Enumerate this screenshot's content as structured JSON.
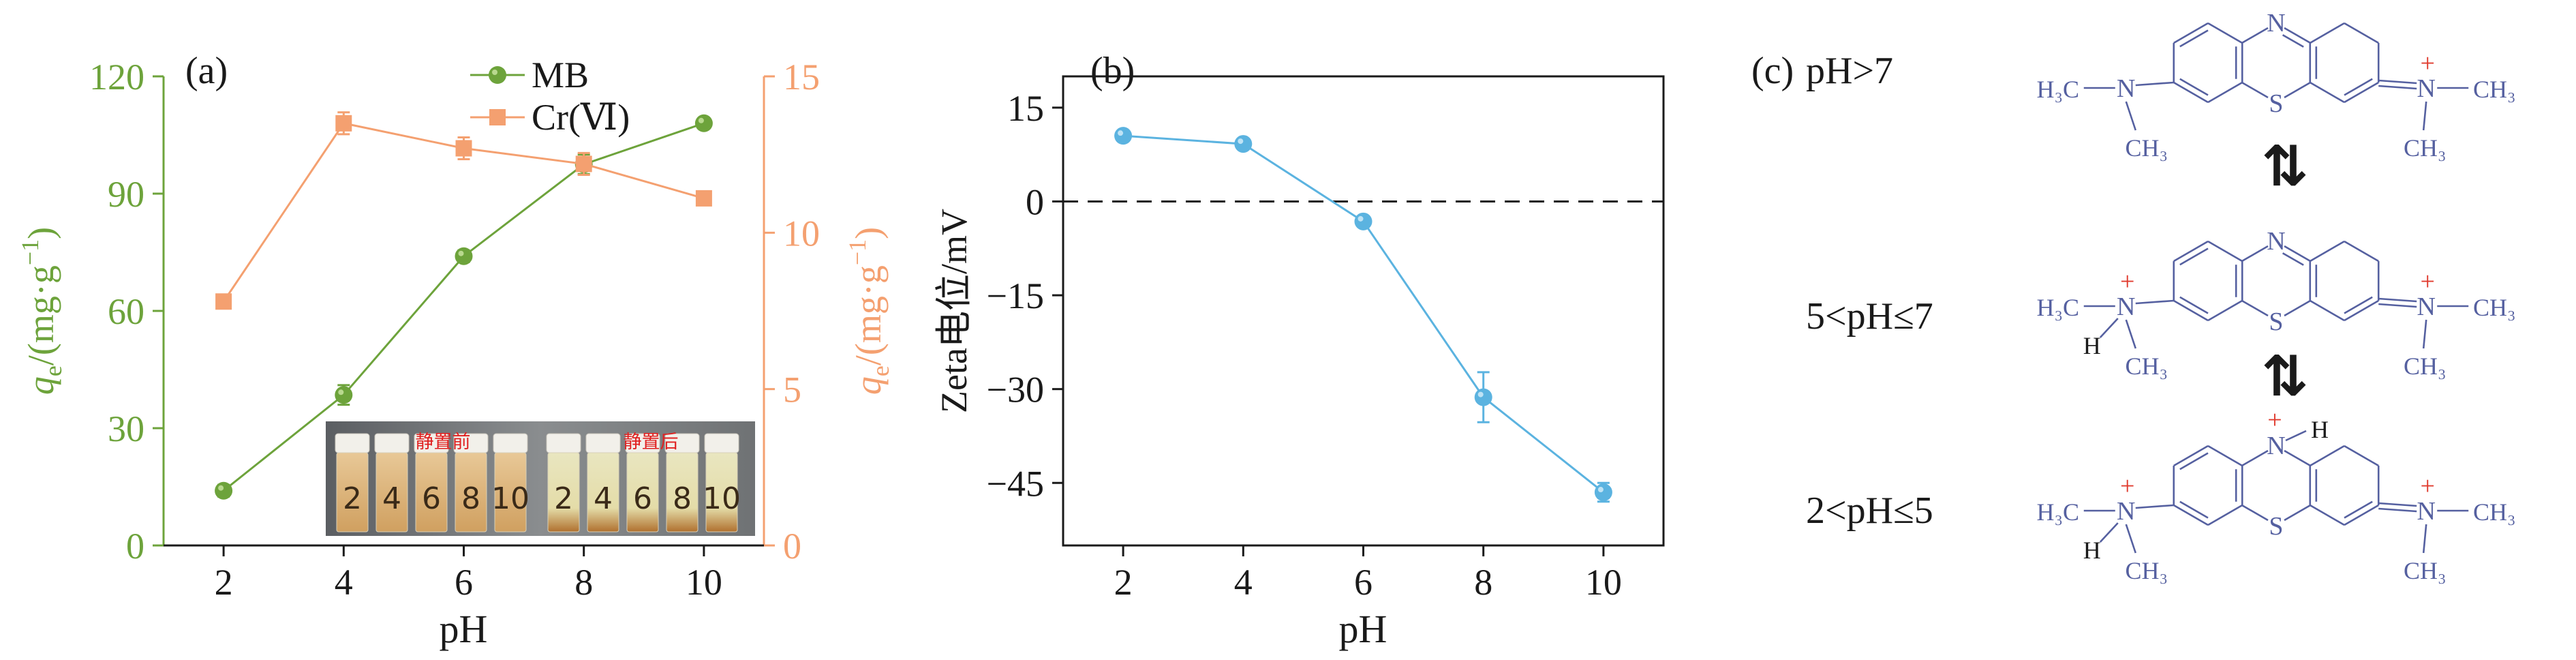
{
  "colors": {
    "mb": "#6da33b",
    "cr": "#f4a070",
    "zeta": "#5bb3e0",
    "axis": "#1a1a1a",
    "structure": "#5560a0",
    "plus": "#e03b2e",
    "photo_label": "#e02020"
  },
  "chart_data": [
    {
      "type": "line",
      "panel": "(a)",
      "x": [
        2,
        4,
        6,
        8,
        10
      ],
      "xlabel": "pH",
      "xticks": [
        "2",
        "4",
        "6",
        "8",
        "10"
      ],
      "xlim": [
        1,
        11
      ],
      "ylabel_left": "q_e/(mg·g^-1)",
      "ylim_left": [
        0,
        120
      ],
      "yticks_left": [
        "0",
        "30",
        "60",
        "90",
        "120"
      ],
      "ylabel_right": "q_e/(mg·g^-1)",
      "ylim_right": [
        0,
        15
      ],
      "yticks_right": [
        "0",
        "5",
        "10",
        "15"
      ],
      "legend_position": "top-center",
      "series": [
        {
          "name": "MB",
          "axis": "left",
          "marker": "circle",
          "values": [
            14,
            38.5,
            74,
            97.5,
            108
          ],
          "errors": [
            1.5,
            2.5,
            1.5,
            2.5,
            1
          ]
        },
        {
          "name": "Cr(Ⅵ)",
          "axis": "right",
          "marker": "square",
          "values": [
            7.8,
            13.5,
            12.7,
            12.2,
            11.1
          ],
          "errors": [
            0.15,
            0.35,
            0.35,
            0.35,
            0.15
          ]
        }
      ],
      "inset_photo": {
        "label_before": "静置前",
        "label_after": "静置后",
        "vial_labels_before": [
          "2",
          "4",
          "6",
          "8",
          "10"
        ],
        "vial_labels_after": [
          "2",
          "4",
          "6",
          "8",
          "10"
        ]
      }
    },
    {
      "type": "line",
      "panel": "(b)",
      "x": [
        2,
        4,
        6,
        8,
        10
      ],
      "xlabel": "pH",
      "xticks": [
        "2",
        "4",
        "6",
        "8",
        "10"
      ],
      "xlim": [
        1,
        11
      ],
      "ylabel": "Zeta电位/mV",
      "ylim": [
        -55,
        20
      ],
      "yticks": [
        "15",
        "0",
        "-15",
        "-30",
        "-45"
      ],
      "reference_line": 0,
      "series": [
        {
          "name": "",
          "marker": "circle",
          "values": [
            10.5,
            9.2,
            -3.2,
            -31.3,
            -46.5
          ],
          "errors": [
            0,
            0,
            0,
            4,
            1.5
          ]
        }
      ]
    }
  ],
  "panel_c": {
    "label": "(c)",
    "conditions": [
      "pH>7",
      "5<pH≤7",
      "2<pH≤5"
    ],
    "equilibrium_symbol": "⇅",
    "atoms": {
      "n": "N",
      "s": "S",
      "h": "H",
      "plus": "+",
      "h3c": "H₃C",
      "ch3": "CH₃"
    }
  }
}
